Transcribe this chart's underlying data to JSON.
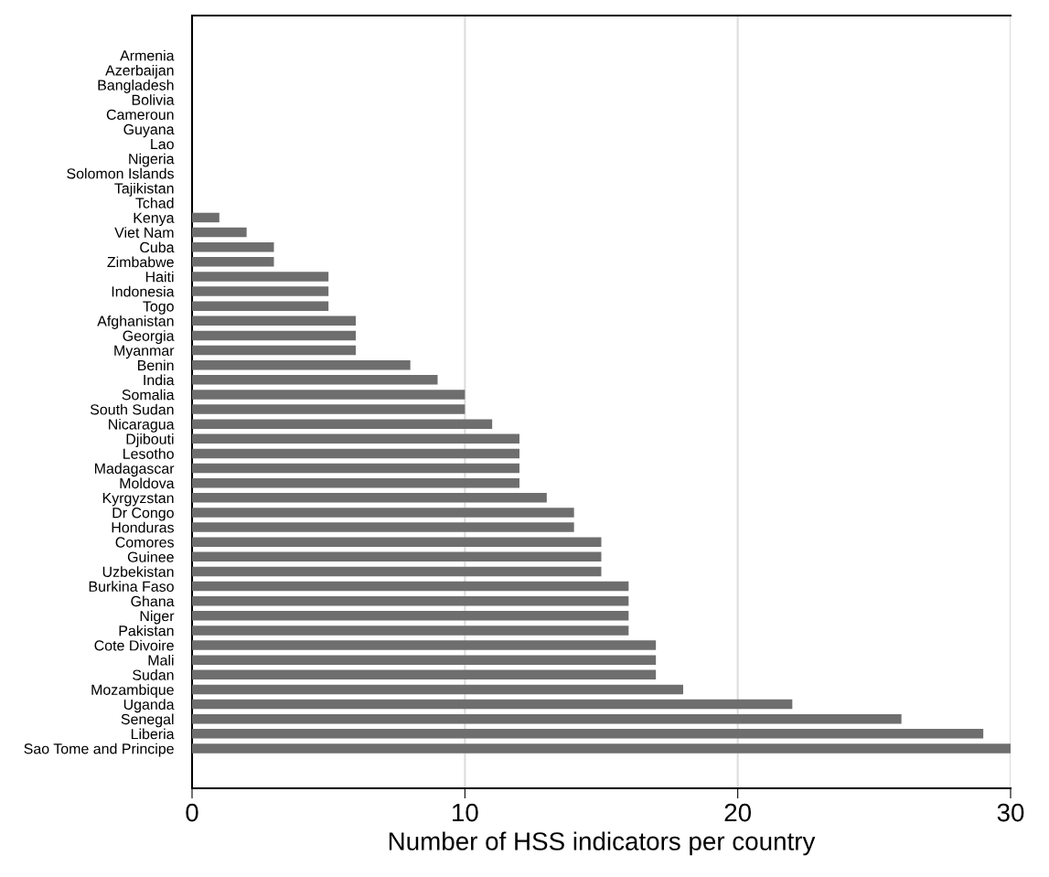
{
  "chart_data": {
    "type": "bar",
    "orientation": "horizontal",
    "xlabel": "Number of HSS indicators per country",
    "categories": [
      "Armenia",
      "Azerbaijan",
      "Bangladesh",
      "Bolivia",
      "Cameroun",
      "Guyana",
      "Lao",
      "Nigeria",
      "Solomon Islands",
      "Tajikistan",
      "Tchad",
      "Kenya",
      "Viet Nam",
      "Cuba",
      "Zimbabwe",
      "Haiti",
      "Indonesia",
      "Togo",
      "Afghanistan",
      "Georgia",
      "Myanmar",
      "Benin",
      "India",
      "Somalia",
      "South Sudan",
      "Nicaragua",
      "Djibouti",
      "Lesotho",
      "Madagascar",
      "Moldova",
      "Kyrgyzstan",
      "Dr Congo",
      "Honduras",
      "Comores",
      "Guinee",
      "Uzbekistan",
      "Burkina Faso",
      "Ghana",
      "Niger",
      "Pakistan",
      "Cote Divoire",
      "Mali",
      "Sudan",
      "Mozambique",
      "Uganda",
      "Senegal",
      "Liberia",
      "Sao Tome and Principe"
    ],
    "values": [
      0,
      0,
      0,
      0,
      0,
      0,
      0,
      0,
      0,
      0,
      0,
      1,
      2,
      3,
      3,
      5,
      5,
      5,
      6,
      6,
      6,
      8,
      9,
      10,
      10,
      11,
      12,
      12,
      12,
      12,
      13,
      14,
      14,
      15,
      15,
      15,
      16,
      16,
      16,
      16,
      17,
      17,
      17,
      18,
      22,
      26,
      29,
      30
    ],
    "color": "#6e6e6e",
    "xlim": [
      0,
      30
    ],
    "xticks": [
      0,
      10,
      20,
      30
    ],
    "grid": "x"
  }
}
